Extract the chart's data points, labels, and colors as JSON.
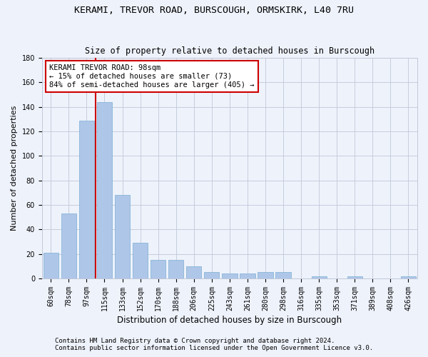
{
  "title1": "KERAMI, TREVOR ROAD, BURSCOUGH, ORMSKIRK, L40 7RU",
  "title2": "Size of property relative to detached houses in Burscough",
  "xlabel": "Distribution of detached houses by size in Burscough",
  "ylabel": "Number of detached properties",
  "categories": [
    "60sqm",
    "78sqm",
    "97sqm",
    "115sqm",
    "133sqm",
    "152sqm",
    "170sqm",
    "188sqm",
    "206sqm",
    "225sqm",
    "243sqm",
    "261sqm",
    "280sqm",
    "298sqm",
    "316sqm",
    "335sqm",
    "353sqm",
    "371sqm",
    "389sqm",
    "408sqm",
    "426sqm"
  ],
  "values": [
    21,
    53,
    129,
    144,
    68,
    29,
    15,
    15,
    10,
    5,
    4,
    4,
    5,
    5,
    0,
    2,
    0,
    2,
    0,
    0,
    2
  ],
  "bar_color": "#aec6e8",
  "bar_edge_color": "#7bafd4",
  "vline_x_idx": 2,
  "vline_color": "#cc0000",
  "annotation_text": "KERAMI TREVOR ROAD: 98sqm\n← 15% of detached houses are smaller (73)\n84% of semi-detached houses are larger (405) →",
  "annotation_box_color": "#ffffff",
  "annotation_box_edge": "#cc0000",
  "ylim": [
    0,
    180
  ],
  "yticks": [
    0,
    20,
    40,
    60,
    80,
    100,
    120,
    140,
    160,
    180
  ],
  "footer1": "Contains HM Land Registry data © Crown copyright and database right 2024.",
  "footer2": "Contains public sector information licensed under the Open Government Licence v3.0.",
  "bg_color": "#eef2fb",
  "plot_bg_color": "#eef2fb",
  "title1_fontsize": 9.5,
  "title2_fontsize": 8.5,
  "xlabel_fontsize": 8.5,
  "ylabel_fontsize": 8,
  "tick_fontsize": 7,
  "annotation_fontsize": 7.5,
  "footer_fontsize": 6.5
}
